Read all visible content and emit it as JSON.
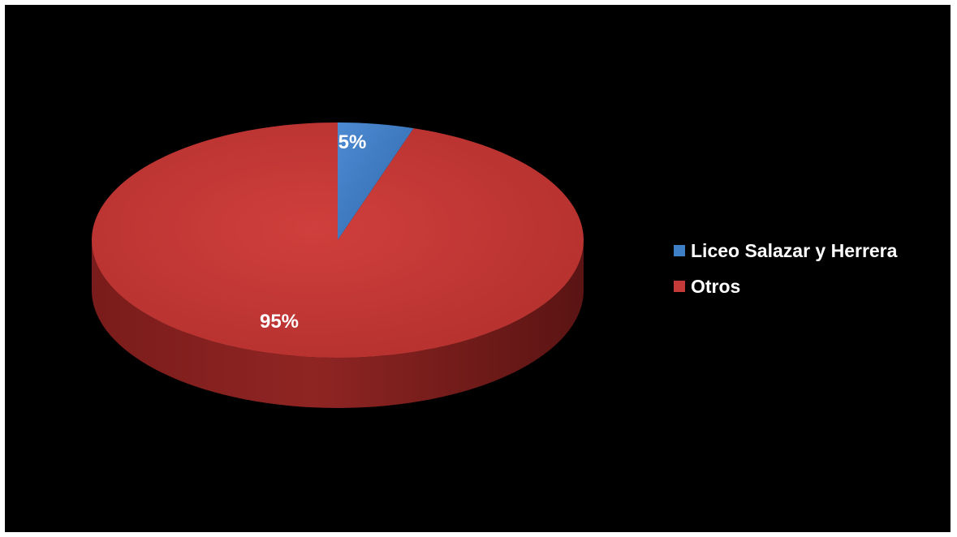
{
  "chart_data": {
    "type": "pie",
    "style": "3d",
    "categories": [
      "Liceo Salazar y Herrera",
      "Otros"
    ],
    "values": [
      5,
      95
    ],
    "data_labels": [
      "5%",
      "95%"
    ],
    "colors": [
      "#3f7fc8",
      "#c43a38"
    ],
    "legend_position": "right"
  }
}
